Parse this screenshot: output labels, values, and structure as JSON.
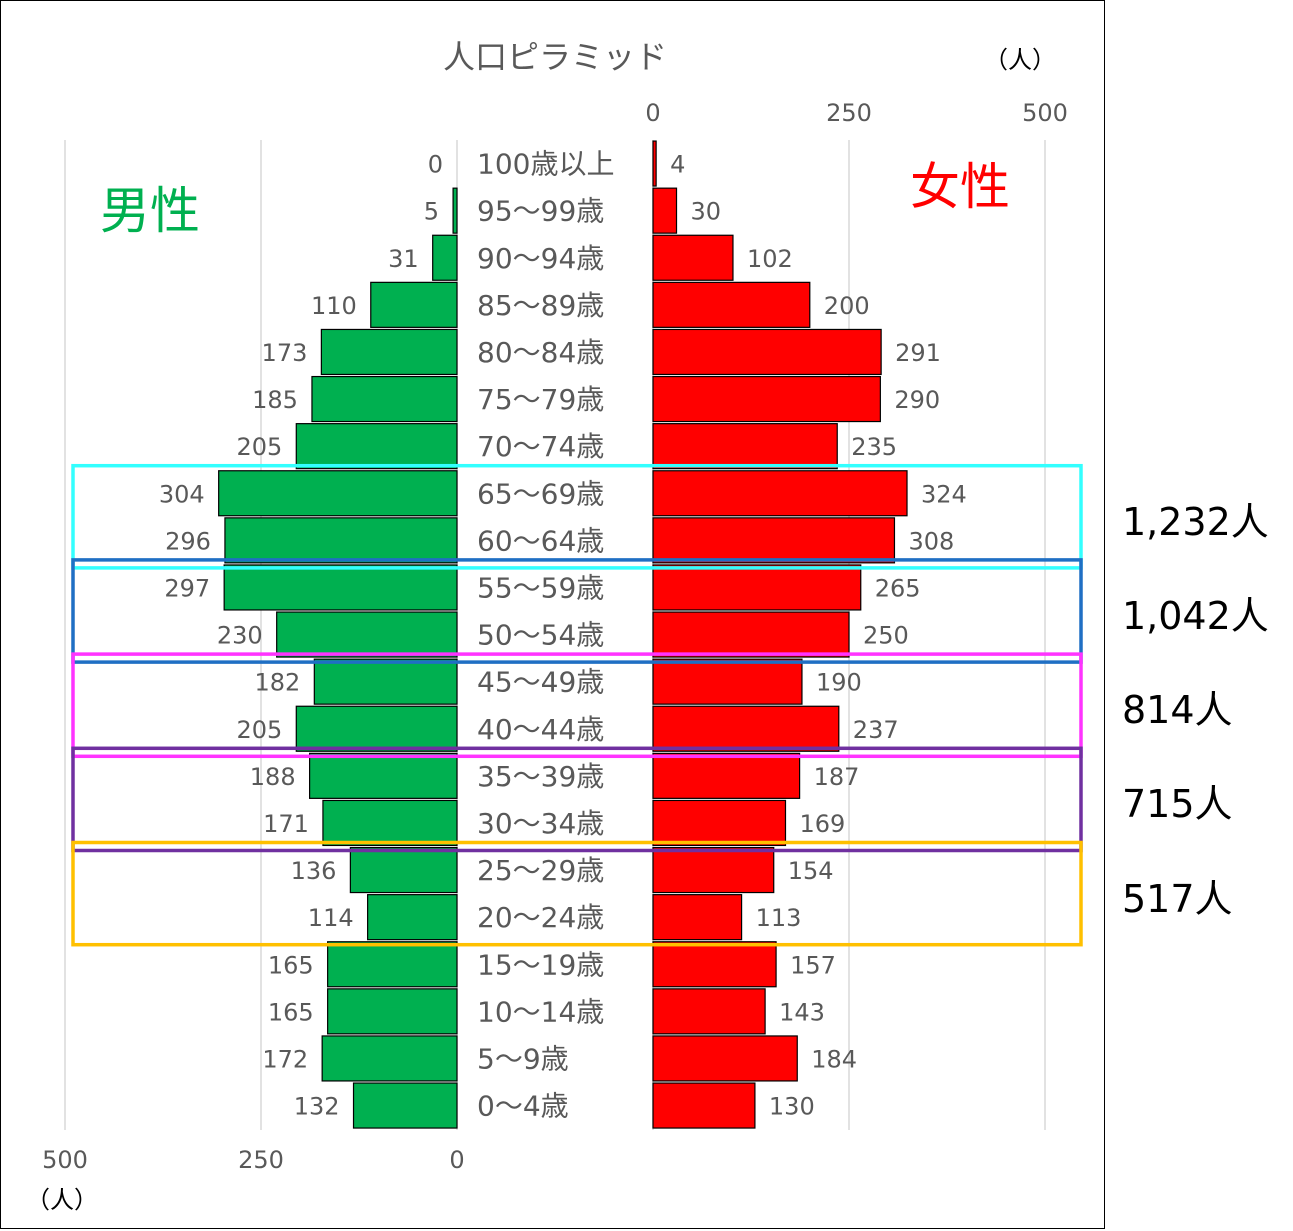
{
  "chart_data": {
    "type": "bar",
    "title": "人口ピラミッド",
    "unit": "（人）",
    "categories": [
      "100歳以上",
      "95〜99歳",
      "90〜94歳",
      "85〜89歳",
      "80〜84歳",
      "75〜79歳",
      "70〜74歳",
      "65〜69歳",
      "60〜64歳",
      "55〜59歳",
      "50〜54歳",
      "45〜49歳",
      "40〜44歳",
      "35〜39歳",
      "30〜34歳",
      "25〜29歳",
      "20〜24歳",
      "15〜19歳",
      "10〜14歳",
      "5〜9歳",
      "0〜4歳"
    ],
    "series": [
      {
        "name": "男性",
        "color": "#00b050",
        "values": [
          0,
          5,
          31,
          110,
          173,
          185,
          205,
          304,
          296,
          297,
          230,
          182,
          205,
          188,
          171,
          136,
          114,
          165,
          165,
          172,
          132
        ]
      },
      {
        "name": "女性",
        "color": "#ff0000",
        "values": [
          4,
          30,
          102,
          200,
          291,
          290,
          235,
          324,
          308,
          265,
          250,
          190,
          237,
          187,
          169,
          154,
          113,
          157,
          143,
          184,
          130
        ]
      }
    ],
    "male_axis": {
      "ticks": [
        "500",
        "250",
        "0"
      ],
      "range": [
        0,
        500
      ]
    },
    "female_axis": {
      "ticks": [
        "0",
        "250",
        "500"
      ],
      "range": [
        0,
        500
      ]
    },
    "grid": true
  },
  "groups": [
    {
      "total": "1,232人",
      "color": "#33ffff",
      "categories": [
        "65〜69歳",
        "60〜64歳"
      ]
    },
    {
      "total": "1,042人",
      "color": "#1f6fc4",
      "categories": [
        "55〜59歳",
        "50〜54歳"
      ]
    },
    {
      "total": "814人",
      "color": "#ff33ff",
      "categories": [
        "45〜49歳",
        "40〜44歳"
      ]
    },
    {
      "total": "715人",
      "color": "#7030a0",
      "categories": [
        "35〜39歳",
        "30〜34歳"
      ]
    },
    {
      "total": "517人",
      "color": "#ffc000",
      "categories": [
        "25〜29歳",
        "20〜24歳"
      ]
    }
  ]
}
